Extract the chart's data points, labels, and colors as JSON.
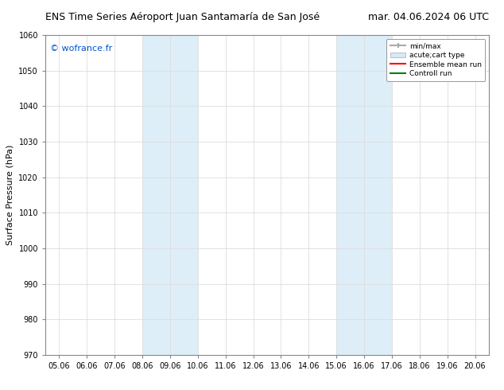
{
  "title_left": "ENS Time Series Aéroport Juan Santamaría de San José",
  "title_right": "mar. 04.06.2024 06 UTC",
  "ylabel": "Surface Pressure (hPa)",
  "ylim": [
    970,
    1060
  ],
  "yticks": [
    970,
    980,
    990,
    1000,
    1010,
    1020,
    1030,
    1040,
    1050,
    1060
  ],
  "xtick_labels": [
    "05.06",
    "06.06",
    "07.06",
    "08.06",
    "09.06",
    "10.06",
    "11.06",
    "12.06",
    "13.06",
    "14.06",
    "15.06",
    "16.06",
    "17.06",
    "18.06",
    "19.06",
    "20.06"
  ],
  "shaded_regions": [
    {
      "xstart": 3,
      "xend": 5,
      "color": "#ddeef8"
    },
    {
      "xstart": 10,
      "xend": 12,
      "color": "#ddeef8"
    }
  ],
  "watermark_text": "© wofrance.fr",
  "watermark_color": "#0055cc",
  "legend_items": [
    {
      "label": "min/max",
      "color": "#aaaaaa",
      "lw": 1.5,
      "ls": "-"
    },
    {
      "label": "acute;cart type",
      "color": "#d6eaf7",
      "lw": 8,
      "ls": "-"
    },
    {
      "label": "Ensemble mean run",
      "color": "red",
      "lw": 1.5,
      "ls": "-"
    },
    {
      "label": "Controll run",
      "color": "green",
      "lw": 1.5,
      "ls": "-"
    }
  ],
  "grid_color": "#dddddd",
  "bg_color": "#ffffff",
  "title_fontsize": 9,
  "axis_label_fontsize": 8,
  "tick_fontsize": 7
}
